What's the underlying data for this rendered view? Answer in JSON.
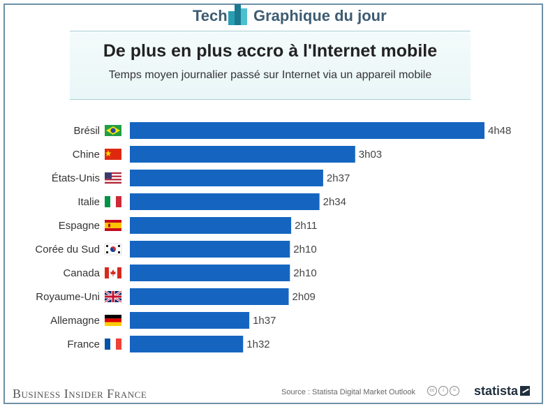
{
  "header": {
    "brand_left": "Tech",
    "brand_right": "Graphique du jour"
  },
  "title": "De plus en plus accro à l'Internet mobile",
  "subtitle": "Temps moyen journalier passé sur Internet via un appareil mobile",
  "footer": {
    "publisher": "Business Insider France",
    "source": "Source : Statista Digital Market Outlook",
    "statista": "statista"
  },
  "colors": {
    "bar": "#1565c0",
    "accent": "#3e5c72"
  },
  "chart_data": {
    "type": "bar",
    "orientation": "horizontal",
    "categories": [
      "Brésil",
      "Chine",
      "États-Unis",
      "Italie",
      "Espagne",
      "Corée du Sud",
      "Canada",
      "Royaume-Uni",
      "Allemagne",
      "France"
    ],
    "values": [
      288,
      183,
      157,
      154,
      131,
      130,
      130,
      129,
      97,
      92
    ],
    "value_unit": "minutes",
    "labels": [
      "4h48",
      "3h03",
      "2h37",
      "2h34",
      "2h11",
      "2h10",
      "2h10",
      "2h09",
      "1h37",
      "1h32"
    ],
    "flags": [
      "brazil-flag-icon",
      "china-flag-icon",
      "usa-flag-icon",
      "italy-flag-icon",
      "spain-flag-icon",
      "south-korea-flag-icon",
      "canada-flag-icon",
      "uk-flag-icon",
      "germany-flag-icon",
      "france-flag-icon"
    ],
    "xlim": [
      0,
      288
    ],
    "grid": false,
    "legend": "none"
  }
}
